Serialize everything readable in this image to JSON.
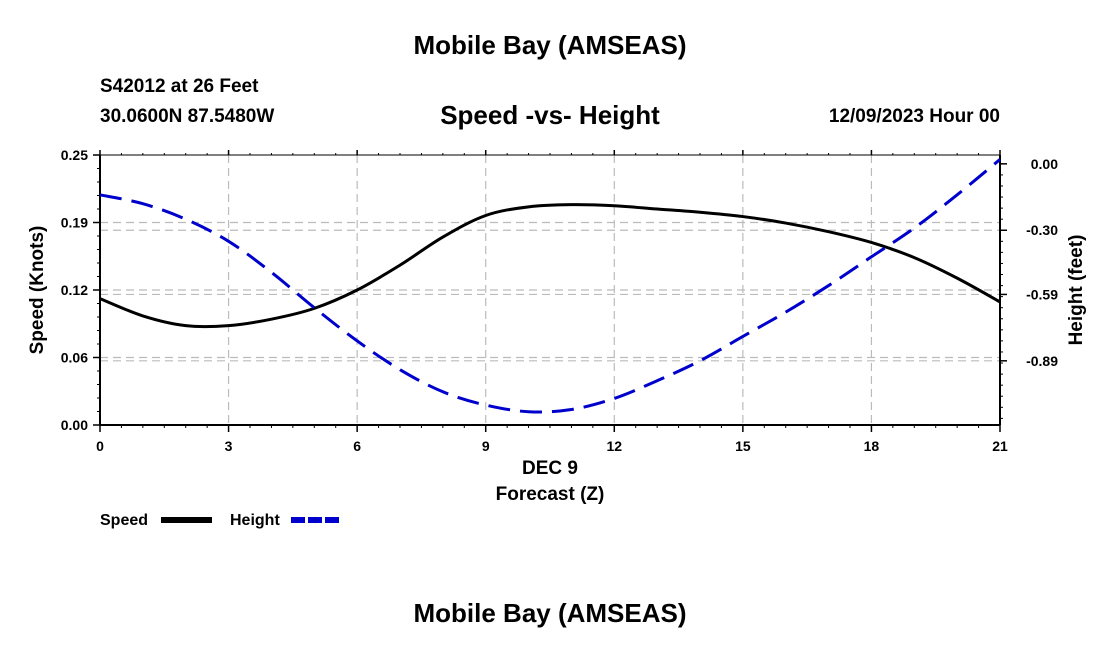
{
  "header": {
    "title": "Mobile Bay (AMSEAS)",
    "station": "S42012 at 26 Feet",
    "coordinates": "30.0600N  87.5480W",
    "subtitle": "Speed -vs- Height",
    "datetime": "12/09/2023 Hour 00"
  },
  "footer": {
    "title": "Mobile Bay (AMSEAS)"
  },
  "colors": {
    "speed": "#000000",
    "height": "#0000cc",
    "grid": "#bbbbbb"
  },
  "chart_data": {
    "type": "line",
    "title": "Speed -vs- Height",
    "xlabel": "Forecast (Z)",
    "xlabel_date": "DEC 9",
    "ylabel": "Speed (Knots)",
    "y2label": "Height (feet)",
    "xlim": [
      0,
      21
    ],
    "ylim": [
      0,
      0.25
    ],
    "y2lim": [
      -1.18,
      0.04
    ],
    "x_ticks": [
      0,
      3,
      6,
      9,
      12,
      15,
      18,
      21
    ],
    "y_ticks": [
      "0.00",
      "0.06",
      "0.12",
      "0.19",
      "0.25"
    ],
    "y_tick_values": [
      0,
      0.0625,
      0.125,
      0.1875,
      0.25
    ],
    "y2_ticks": [
      "0.00",
      "-0.30",
      "-0.59",
      "-0.89"
    ],
    "y2_tick_values": [
      0,
      -0.3,
      -0.59,
      -0.89
    ],
    "grid": true,
    "series": [
      {
        "name": "Speed",
        "axis": "left",
        "style": "solid",
        "x": [
          0,
          1,
          2,
          3,
          4,
          5,
          6,
          7,
          8,
          9,
          10,
          11,
          12,
          13,
          14,
          15,
          16,
          17,
          18,
          19,
          20,
          21
        ],
        "values": [
          0.117,
          0.101,
          0.092,
          0.092,
          0.098,
          0.108,
          0.125,
          0.148,
          0.174,
          0.194,
          0.202,
          0.204,
          0.203,
          0.2,
          0.197,
          0.193,
          0.187,
          0.179,
          0.169,
          0.155,
          0.136,
          0.114
        ]
      },
      {
        "name": "Height",
        "axis": "right",
        "style": "dashed",
        "x": [
          0,
          1,
          2,
          3,
          4,
          5,
          6,
          7,
          8,
          9,
          10,
          11,
          12,
          13,
          14,
          15,
          16,
          17,
          18,
          19,
          20,
          21
        ],
        "values": [
          -0.14,
          -0.18,
          -0.25,
          -0.35,
          -0.49,
          -0.65,
          -0.8,
          -0.93,
          -1.03,
          -1.09,
          -1.12,
          -1.11,
          -1.06,
          -0.98,
          -0.89,
          -0.78,
          -0.67,
          -0.55,
          -0.42,
          -0.29,
          -0.14,
          0.02
        ]
      }
    ]
  }
}
